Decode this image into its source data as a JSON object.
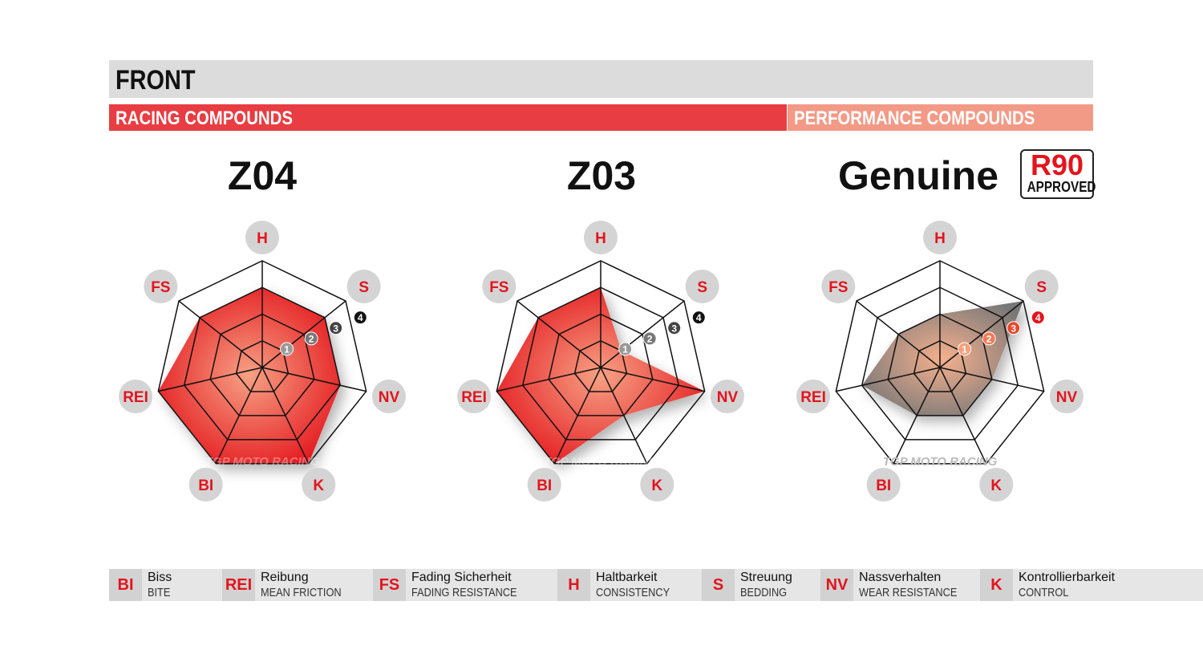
{
  "header": {
    "title": "FRONT",
    "racing_label": "RACING COMPOUNDS",
    "performance_label": "PERFORMANCE COMPOUNDS",
    "badge_big": "R90",
    "badge_small": "APPROVED"
  },
  "colors": {
    "racing": "#e83d42",
    "performance": "#f29a86",
    "label_red": "#e3141d",
    "genuine_fill": "#8a8a8a"
  },
  "watermark": "TGP MOTO RACING",
  "chart_data": [
    {
      "type": "radar",
      "title": "Z04",
      "axes": [
        "H",
        "S",
        "NV",
        "K",
        "BI",
        "REI",
        "FS"
      ],
      "rlim": [
        0,
        4
      ],
      "ticks": [
        "1",
        "2",
        "3",
        "4"
      ],
      "values": [
        3,
        3,
        3,
        4,
        4,
        4,
        3
      ],
      "color": "#e83d2a"
    },
    {
      "type": "radar",
      "title": "Z03",
      "axes": [
        "H",
        "S",
        "NV",
        "K",
        "BI",
        "REI",
        "FS"
      ],
      "rlim": [
        0,
        4
      ],
      "ticks": [
        "1",
        "2",
        "3",
        "4"
      ],
      "values": [
        3,
        1,
        4,
        2,
        4,
        4,
        3
      ],
      "color": "#e83d2a"
    },
    {
      "type": "radar",
      "title": "Genuine",
      "axes": [
        "H",
        "S",
        "NV",
        "K",
        "BI",
        "REI",
        "FS"
      ],
      "rlim": [
        0,
        4
      ],
      "ticks": [
        "1",
        "2",
        "3",
        "4"
      ],
      "values": [
        2,
        4,
        2,
        2,
        2,
        3,
        2
      ],
      "color": "#8a8a8a"
    }
  ],
  "legend": [
    {
      "abbr": "BI",
      "de": "Biss",
      "en": "BITE"
    },
    {
      "abbr": "REI",
      "de": "Reibung",
      "en": "MEAN FRICTION"
    },
    {
      "abbr": "FS",
      "de": "Fading Sicherheit",
      "en": "FADING RESISTANCE"
    },
    {
      "abbr": "H",
      "de": "Haltbarkeit",
      "en": "CONSISTENCY"
    },
    {
      "abbr": "S",
      "de": "Streuung",
      "en": "BEDDING"
    },
    {
      "abbr": "NV",
      "de": "Nassverhalten",
      "en": "WEAR RESISTANCE"
    },
    {
      "abbr": "K",
      "de": "Kontrollierbarkeit",
      "en": "CONTROL"
    }
  ]
}
